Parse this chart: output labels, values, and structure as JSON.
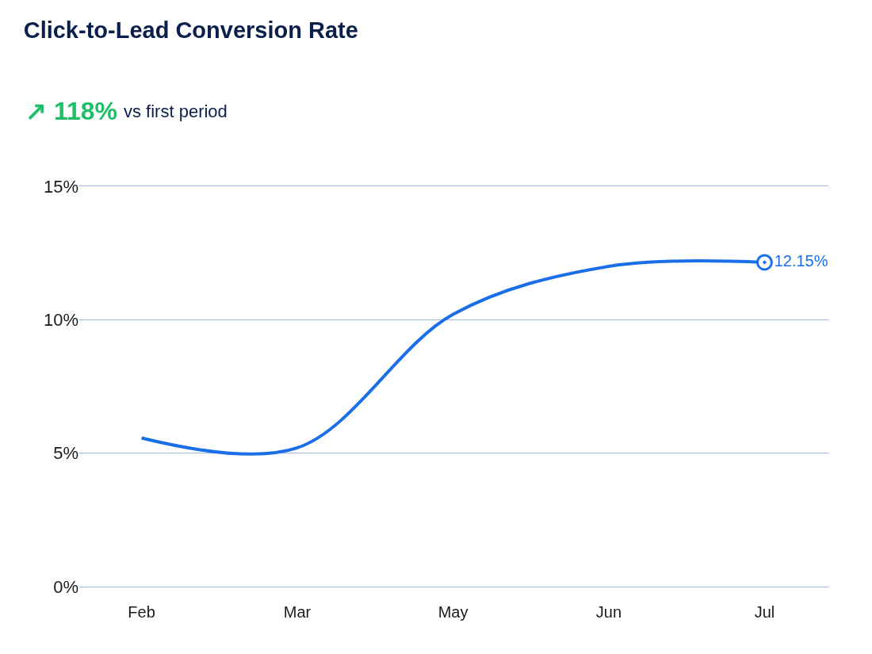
{
  "chart_data": {
    "type": "line",
    "title": "Click-to-Lead Conversion Rate",
    "annotations": [
      "↗ 118%",
      "vs first period"
    ],
    "categories": [
      "Feb",
      "Mar",
      "May",
      "Jun",
      "Jul"
    ],
    "series": [
      {
        "color": "#1a6fe8",
        "values": [
          5.57,
          5.2,
          10.2,
          12.0,
          12.15
        ],
        "value_labels": [
          null,
          null,
          null,
          null,
          "12.15%"
        ]
      }
    ],
    "ylim": [
      0,
      15
    ],
    "yticks": [
      {
        "value": 0,
        "label": "0%"
      },
      {
        "value": 5,
        "label": "5%"
      },
      {
        "value": 10,
        "label": "10%"
      },
      {
        "value": 15,
        "label": "15%"
      }
    ],
    "grid": "y",
    "line_style": "solid"
  }
}
